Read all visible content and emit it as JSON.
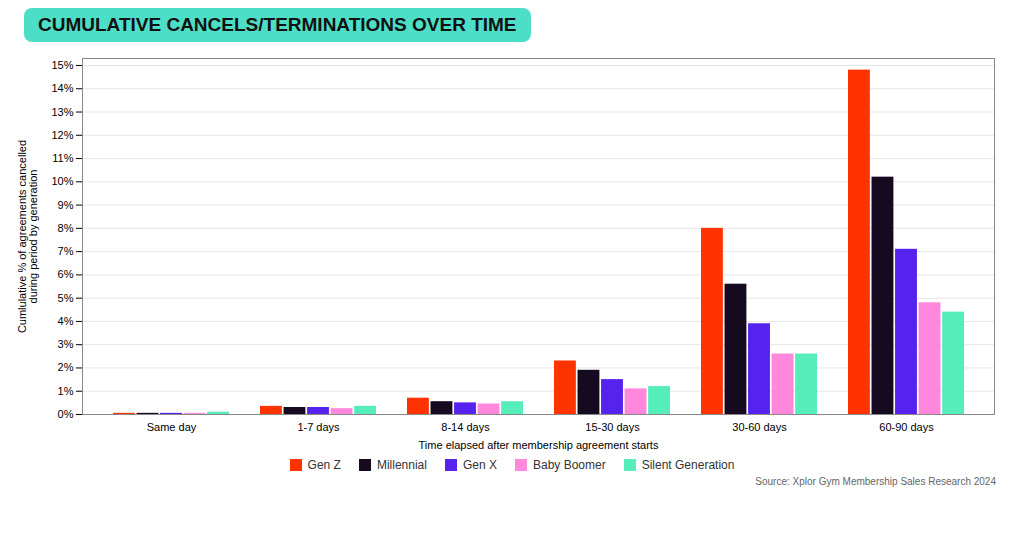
{
  "chart_data": {
    "type": "bar",
    "title": "CUMULATIVE CANCELS/TERMINATIONS OVER TIME",
    "xlabel": "Time elapsed after membership agreement starts",
    "ylabel": "Cumlulative % of agreements cancelled\nduring period by generation",
    "annotations": [
      "Source: Xplor Gym Membership Sales Research 2024"
    ],
    "categories": [
      "Same day",
      "1-7 days",
      "8-14 days",
      "15-30 days",
      "30-60 days",
      "60-90 days"
    ],
    "series": [
      {
        "name": "Gen Z",
        "color": "#FF3300",
        "values": [
          0.05,
          0.35,
          0.7,
          2.3,
          8.0,
          14.8
        ]
      },
      {
        "name": "Millennial",
        "color": "#150A20",
        "values": [
          0.05,
          0.3,
          0.55,
          1.9,
          5.6,
          10.2
        ]
      },
      {
        "name": "Gen X",
        "color": "#5522EE",
        "values": [
          0.05,
          0.3,
          0.5,
          1.5,
          3.9,
          7.1
        ]
      },
      {
        "name": "Baby Boomer",
        "color": "#FF88DD",
        "values": [
          0.05,
          0.25,
          0.45,
          1.1,
          2.6,
          4.8
        ]
      },
      {
        "name": "Silent Generation",
        "color": "#55EEBB",
        "values": [
          0.1,
          0.35,
          0.55,
          1.2,
          2.6,
          4.4
        ]
      }
    ],
    "ylim": [
      0,
      15.3
    ],
    "yticks": [
      {
        "value": 0,
        "label": "0%"
      },
      {
        "value": 1,
        "label": "1%"
      },
      {
        "value": 2,
        "label": "2%"
      },
      {
        "value": 3,
        "label": "3%"
      },
      {
        "value": 4,
        "label": "4%"
      },
      {
        "value": 5,
        "label": "5%"
      },
      {
        "value": 6,
        "label": "6%"
      },
      {
        "value": 7,
        "label": "7%"
      },
      {
        "value": 8,
        "label": "8%"
      },
      {
        "value": 9,
        "label": "9%"
      },
      {
        "value": 10,
        "label": "10%"
      },
      {
        "value": 11,
        "label": "11%"
      },
      {
        "value": 12,
        "label": "12%"
      },
      {
        "value": 13,
        "label": "13%"
      },
      {
        "value": 14,
        "label": "14%"
      },
      {
        "value": 15,
        "label": "15%"
      }
    ],
    "grid": true,
    "legend": "bottom"
  }
}
